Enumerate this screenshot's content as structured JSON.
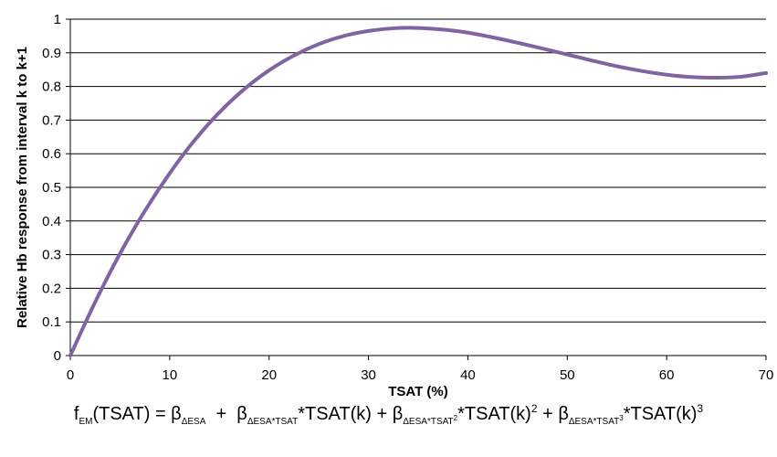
{
  "chart_data": {
    "type": "line",
    "title": "",
    "xlabel": "TSAT (%)",
    "ylabel": "Relative Hb response from interval k to k+1",
    "xlim": [
      0,
      70
    ],
    "ylim": [
      0,
      1
    ],
    "x_ticks": [
      0,
      10,
      20,
      30,
      40,
      50,
      60,
      70
    ],
    "y_ticks": [
      "0",
      "0.1",
      "0.2",
      "0.3",
      "0.4",
      "0.5",
      "0.6",
      "0.7",
      "0.8",
      "0.9",
      "1"
    ],
    "grid": "horizontal",
    "legend": "none",
    "series": [
      {
        "color": "#8064A2",
        "x": [
          0,
          2.5,
          5,
          7.5,
          10,
          12.5,
          15,
          17.5,
          20,
          22.5,
          25,
          27.5,
          30,
          32.5,
          35,
          37.5,
          40,
          42.5,
          45,
          47.5,
          50,
          52.5,
          55,
          57.5,
          60,
          62.5,
          65,
          67.5,
          70
        ],
        "y": [
          0,
          0.159,
          0.303,
          0.43,
          0.542,
          0.64,
          0.723,
          0.792,
          0.848,
          0.892,
          0.926,
          0.95,
          0.965,
          0.973,
          0.974,
          0.969,
          0.96,
          0.946,
          0.93,
          0.913,
          0.895,
          0.877,
          0.86,
          0.846,
          0.835,
          0.828,
          0.826,
          0.829,
          0.84
        ]
      }
    ]
  },
  "formula": {
    "f": "f",
    "f_sub": "EM",
    "part1": "(TSAT) = β",
    "b1_sub": "ΔESA",
    "part2": "  +  β",
    "b2_sub": "ΔESA*TSAT",
    "part3": "*TSAT(k) + β",
    "b3_sub": "ΔESA*TSAT",
    "b3_subsup": "2",
    "part4": "*TSAT(k)",
    "sq": "2",
    "part5": " + β",
    "b4_sub": "ΔESA*TSAT",
    "b4_subsup": "3",
    "part6": "*TSAT(k)",
    "cube": "3"
  }
}
